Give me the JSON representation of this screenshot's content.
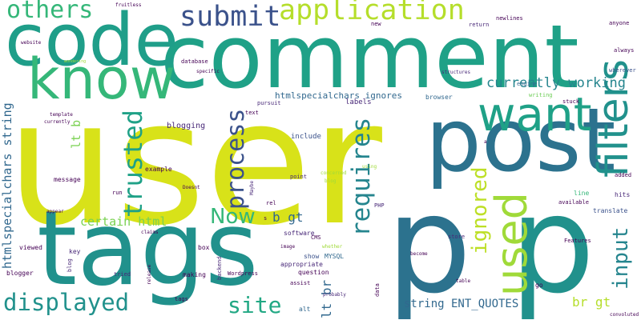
{
  "words": {
    "user": "user",
    "comment": "comment",
    "tags": "tags",
    "post": "post",
    "p_left": "p",
    "p_right": "p",
    "code": "code",
    "know": "know",
    "want": "want",
    "filters": "filters",
    "submit": "submit",
    "application": "application",
    "others": "others",
    "trusted": "trusted",
    "process": "process",
    "requires": "requires",
    "used": "used",
    "ignored": "ignored",
    "input": "input",
    "displayed": "displayed",
    "site": "site",
    "now": "Now",
    "currently_working": "currently working",
    "certain_html": "certain html",
    "b_gt": "b gt",
    "br_gt": "br gt",
    "lt_br": "lt br",
    "lt_b": "lt b",
    "string_ent_quotes": "string ENT_QUOTES",
    "htmlspecialchars_string": "htmlspecialchars string",
    "htmlspecialchars_ignores": "htmlspecialchars ignores",
    "blogging": "blogging",
    "include": "include",
    "labels": "labels",
    "browser": "browser",
    "engine": "engine",
    "writing": "writing",
    "wherever": "wherever",
    "structures": "structures",
    "return": "return",
    "newlines": "newlines",
    "new": "new",
    "fruitless": "fruitless",
    "anyone": "anyone",
    "always": "always",
    "stuck": "stuck",
    "added": "added",
    "hits": "hits",
    "translate": "translate",
    "line": "line",
    "available": "available",
    "features": "Features",
    "convoluted": "convoluted",
    "go": "go",
    "table": "table",
    "store": "store",
    "become": "become",
    "data": "data",
    "probably": "probably",
    "whether": "whether",
    "mysql": "MYSQL",
    "show": "show",
    "cms": "CMS",
    "software": "software",
    "appropriate": "appropriate",
    "question": "question",
    "assist": "assist",
    "alt": "alt",
    "php": "PHP",
    "concerned": "concerned",
    "blog": "blog",
    "using": "using",
    "point": "point",
    "image": "image",
    "rel": "rel",
    "s": "s",
    "maybe": "Maybe",
    "doesnt": "Doesnt",
    "box": "box",
    "making": "making",
    "backend": "backend",
    "wordpress": "Wordpress",
    "tags2": "tags",
    "claims": "claims",
    "release": "release",
    "tried": "tried",
    "blogger": "blogger",
    "key": "key",
    "blog2": "blog",
    "viewed": "viewed",
    "appear": "appear",
    "run": "run",
    "message": "message",
    "example": "example",
    "currently": "currently",
    "template": "template",
    "text": "text",
    "pursuit": "pursuit",
    "database": "database",
    "specific": "specific",
    "wondering": "wondering",
    "website": "website",
    "a": "a"
  }
}
